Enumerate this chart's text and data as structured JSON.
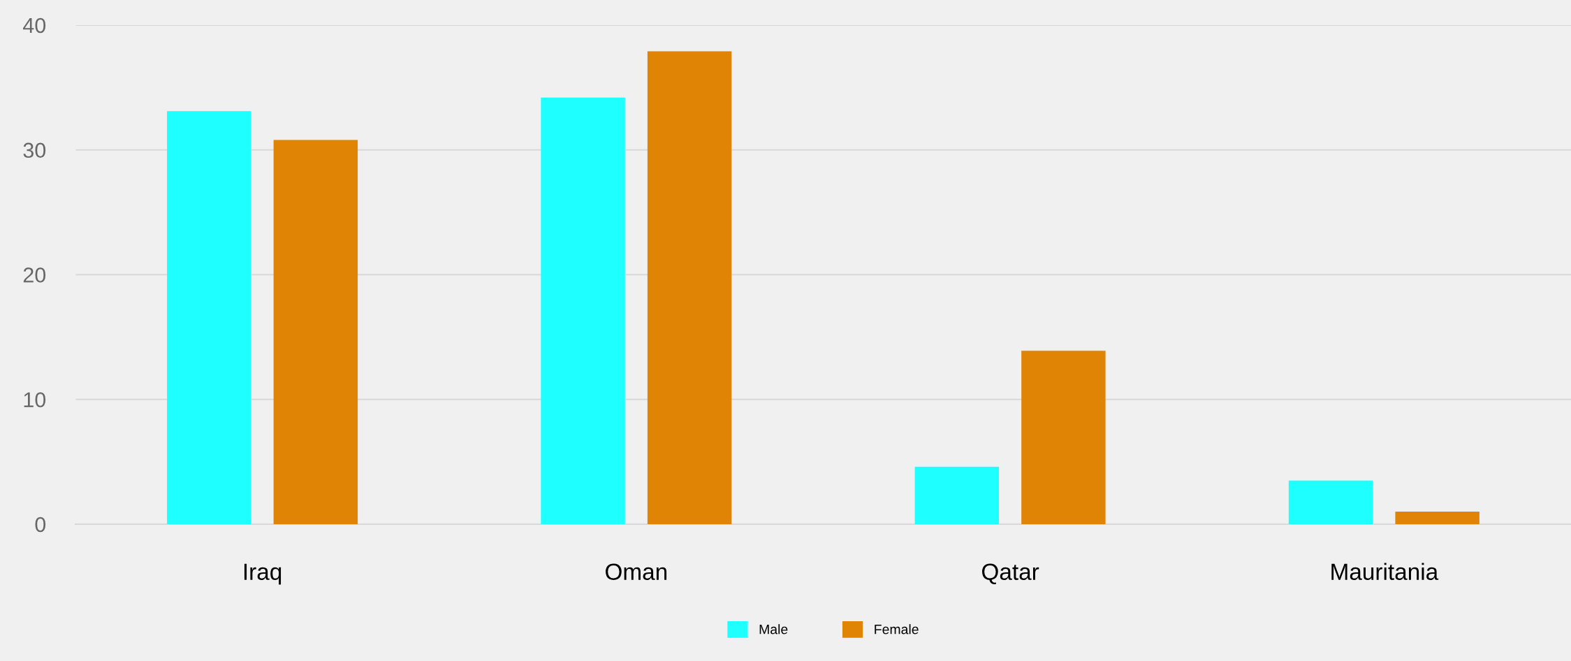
{
  "chart_data": {
    "type": "bar",
    "categories": [
      "Iraq",
      "Oman",
      "Qatar",
      "Mauritania"
    ],
    "series": [
      {
        "name": "Male",
        "color": "#1effff",
        "values": [
          33.1,
          34.2,
          4.6,
          3.5
        ]
      },
      {
        "name": "Female",
        "color": "#e08405",
        "values": [
          30.8,
          37.9,
          13.9,
          1.0
        ]
      }
    ],
    "ylim": [
      0,
      40
    ],
    "yticks": [
      0,
      10,
      20,
      30,
      40
    ],
    "grid": "y",
    "legend": "bottom"
  }
}
